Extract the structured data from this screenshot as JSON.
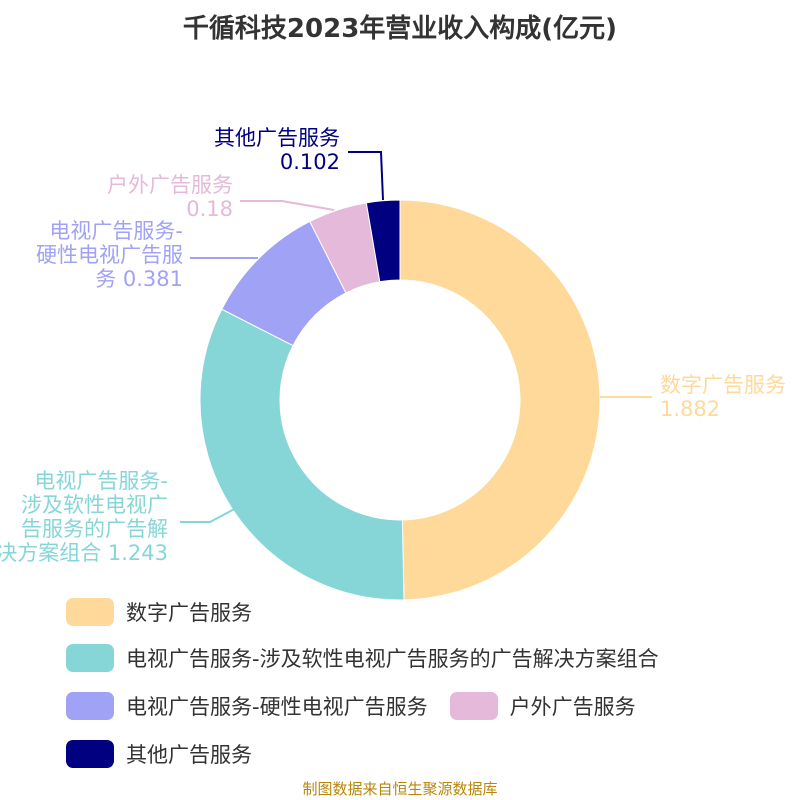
{
  "title": "千循科技2023年营业收入构成(亿元)",
  "source": "制图数据来自恒生聚源数据库",
  "chart_data": {
    "type": "pie",
    "donut": true,
    "title": "千循科技2023年营业收入构成(亿元)",
    "legend_position": "bottom",
    "slices": [
      {
        "name": "数字广告服务",
        "value": 1.882,
        "color": "#FFD99A",
        "label_lines": [
          "数字广告服务",
          "1.882"
        ]
      },
      {
        "name": "电视广告服务-涉及软性电视广告服务的广告解决方案组合",
        "value": 1.243,
        "color": "#86D6D8",
        "label_lines": [
          "电视广告服务-",
          "涉及软性电视广",
          "告服务的广告解",
          "决方案组合 1.243"
        ]
      },
      {
        "name": "电视广告服务-硬性电视广告服务",
        "value": 0.381,
        "color": "#A0A2F5",
        "label_lines": [
          "电视广告服务-",
          "硬性电视广告服",
          "务 0.381"
        ]
      },
      {
        "name": "户外广告服务",
        "value": 0.18,
        "color": "#E5B9D9",
        "label_lines": [
          "户外广告服务",
          "0.18"
        ]
      },
      {
        "name": "其他广告服务",
        "value": 0.102,
        "color": "#000080",
        "label_lines": [
          "其他广告服务",
          "0.102"
        ]
      }
    ]
  }
}
